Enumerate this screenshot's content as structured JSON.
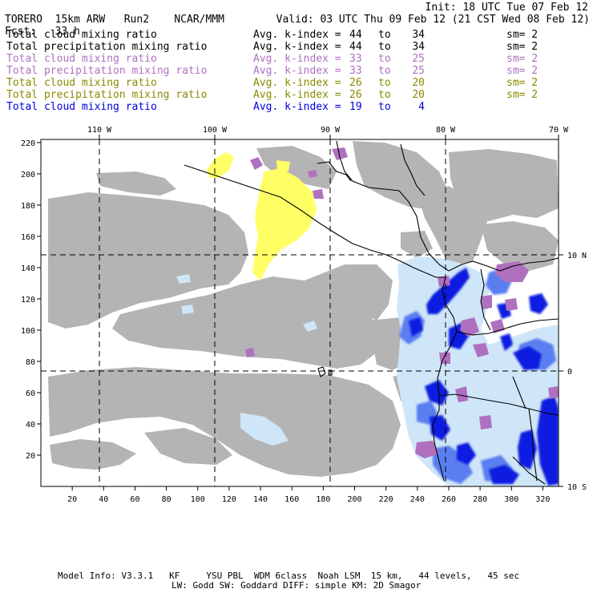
{
  "header": {
    "model": "TORERO",
    "resolution": "15km ARW",
    "run": "Run2",
    "org": "NCAR/MMM",
    "init": "Init: 18 UTC Tue 07 Feb 12",
    "fcst_label": "Fcst:",
    "fcst_value": "33 h",
    "valid": "Valid: 03 UTC Thu 09 Feb 12 (21 CST Wed 08 Feb 12)"
  },
  "legend": [
    {
      "field": "Total cloud mixing ratio",
      "label": "Avg. k-index =",
      "from": "44",
      "to_word": "to",
      "to": "34",
      "sm": "sm= 2",
      "color": "#000000"
    },
    {
      "field": "Total precipitation mixing ratio",
      "label": "Avg. k-index =",
      "from": "44",
      "to_word": "to",
      "to": "34",
      "sm": "sm= 2",
      "color": "#000000"
    },
    {
      "field": "Total cloud mixing ratio",
      "label": "Avg. k-index =",
      "from": "33",
      "to_word": "to",
      "to": "25",
      "sm": "sm= 2",
      "color": "#b070c0"
    },
    {
      "field": "Total precipitation mixing ratio",
      "label": "Avg. k-index =",
      "from": "33",
      "to_word": "to",
      "to": "25",
      "sm": "sm= 2",
      "color": "#b070c0"
    },
    {
      "field": "Total cloud mixing ratio",
      "label": "Avg. k-index =",
      "from": "26",
      "to_word": "to",
      "to": "20",
      "sm": "sm= 2",
      "color": "#8a8a00"
    },
    {
      "field": "Total precipitation mixing ratio",
      "label": "Avg. k-index =",
      "from": "26",
      "to_word": "to",
      "to": "20",
      "sm": "sm= 2",
      "color": "#8a8a00"
    },
    {
      "field": "Total cloud mixing ratio",
      "label": "Avg. k-index =",
      "from": "19",
      "to_word": "to",
      "to": "4",
      "sm": "",
      "color": "#0000e0"
    }
  ],
  "axes": {
    "top_lon": [
      "110 W",
      "100 W",
      "90 W",
      "80 W",
      "70 W"
    ],
    "right_lat": [
      "10 N",
      "0",
      "10 S"
    ],
    "left_y": [
      "220",
      "200",
      "180",
      "160",
      "140",
      "120",
      "100",
      "80",
      "60",
      "40",
      "20"
    ],
    "bottom_x": [
      "20",
      "40",
      "60",
      "80",
      "100",
      "120",
      "140",
      "160",
      "180",
      "200",
      "220",
      "240",
      "260",
      "280",
      "300",
      "320"
    ]
  },
  "footer": {
    "line1": "Model Info: V3.3.1   KF     YSU PBL  WDM 6class  Noah LSM  15 km,   44 levels,   45 sec",
    "line2": "LW: Godd SW: Goddard DIFF: simple KM: 2D Smagor"
  },
  "colors": {
    "gray_cloud": "#b4b4b4",
    "purple": "#b070c0",
    "yellow": "#ffff66",
    "light_blue": "#cfe6f8",
    "mid_blue": "#5a7ef0",
    "dark_blue": "#0a1ee0"
  }
}
